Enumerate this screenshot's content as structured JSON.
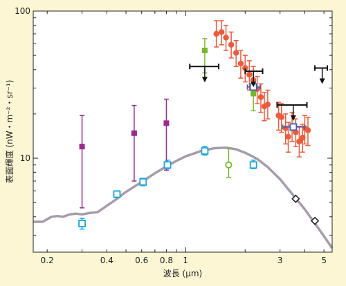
{
  "chart_data": {
    "type": "scatter",
    "xlabel": "波長 (μm)",
    "ylabel": "表面輝度 (nW・m⁻²・sr⁻¹)",
    "x_scale": "log",
    "y_scale": "log",
    "xlim": [
      0.17,
      5.5
    ],
    "ylim": [
      2.3,
      100
    ],
    "x_tick_labels": [
      {
        "value": 0.2,
        "label": "0.2"
      },
      {
        "value": 0.4,
        "label": "0.4"
      },
      {
        "value": 0.6,
        "label": "0.6"
      },
      {
        "value": 0.8,
        "label": "0.8"
      },
      {
        "value": 1,
        "label": "1"
      },
      {
        "value": 3,
        "label": "3"
      },
      {
        "value": 5,
        "label": "5"
      }
    ],
    "y_tick_labels": [
      {
        "value": 10,
        "label": "10"
      },
      {
        "value": 100,
        "label": "100"
      }
    ],
    "colors": {
      "background": "#fdf6d4",
      "plot_bg": "#ffffff",
      "curve": "#a59bab",
      "magenta": "#9a2a8f",
      "cyan": "#1aa3dd",
      "green": "#77b82e",
      "red": "#ee5a3a",
      "blue": "#3b5fb3",
      "black": "#111111"
    },
    "series": [
      {
        "marker": "square",
        "color": "magenta",
        "points": [
          {
            "x": 0.3,
            "y": 12.0,
            "ylo": 4.6,
            "yhi": 19.5
          },
          {
            "x": 0.55,
            "y": 14.8,
            "ylo": 7.0,
            "yhi": 22.8
          },
          {
            "x": 0.8,
            "y": 17.3,
            "ylo": 8.3,
            "yhi": 25.2
          }
        ]
      },
      {
        "marker": "open-square",
        "color": "cyan",
        "points": [
          {
            "x": 0.3,
            "y": 3.6,
            "ylo": 3.3,
            "yhi": 3.9
          },
          {
            "x": 0.45,
            "y": 5.7,
            "ylo": 5.4,
            "yhi": 6.0
          },
          {
            "x": 0.61,
            "y": 6.9,
            "ylo": 6.5,
            "yhi": 7.3
          },
          {
            "x": 0.81,
            "y": 9.0,
            "ylo": 8.5,
            "yhi": 9.7
          },
          {
            "x": 1.25,
            "y": 11.2,
            "ylo": 10.5,
            "yhi": 12.0
          },
          {
            "x": 2.2,
            "y": 9.0,
            "ylo": 8.5,
            "yhi": 9.7
          }
        ]
      },
      {
        "marker": "open-circle",
        "color": "green",
        "points": [
          {
            "x": 1.65,
            "y": 9.0,
            "ylo": 7.4,
            "yhi": 11.6
          }
        ]
      },
      {
        "marker": "filled-square",
        "color": "green",
        "points": [
          {
            "x": 1.25,
            "y": 54,
            "ylo": 38,
            "yhi": 65
          },
          {
            "x": 2.2,
            "y": 27.5,
            "ylo": 21,
            "yhi": 33
          }
        ]
      },
      {
        "marker": "circle",
        "color": "red",
        "points": [
          {
            "x": 1.43,
            "y": 70,
            "ylo": 57,
            "yhi": 86
          },
          {
            "x": 1.52,
            "y": 72,
            "ylo": 59,
            "yhi": 86
          },
          {
            "x": 1.6,
            "y": 66,
            "ylo": 54,
            "yhi": 80
          },
          {
            "x": 1.7,
            "y": 59,
            "ylo": 48,
            "yhi": 72
          },
          {
            "x": 1.8,
            "y": 52,
            "ylo": 42,
            "yhi": 63
          },
          {
            "x": 1.9,
            "y": 44,
            "ylo": 35,
            "yhi": 54
          },
          {
            "x": 2.0,
            "y": 41,
            "ylo": 33,
            "yhi": 50
          },
          {
            "x": 2.1,
            "y": 37,
            "ylo": 29,
            "yhi": 46
          },
          {
            "x": 2.2,
            "y": 34,
            "ylo": 27,
            "yhi": 42
          },
          {
            "x": 2.3,
            "y": 29.5,
            "ylo": 23.5,
            "yhi": 36
          },
          {
            "x": 2.4,
            "y": 26,
            "ylo": 20.5,
            "yhi": 32
          },
          {
            "x": 2.5,
            "y": 22.5,
            "ylo": 18,
            "yhi": 28
          },
          {
            "x": 2.6,
            "y": 23.2,
            "ylo": 18.5,
            "yhi": 29
          },
          {
            "x": 2.95,
            "y": 19.5,
            "ylo": 15.5,
            "yhi": 24
          },
          {
            "x": 3.05,
            "y": 19,
            "ylo": 15,
            "yhi": 23.5
          },
          {
            "x": 3.2,
            "y": 16,
            "ylo": 12.5,
            "yhi": 20
          },
          {
            "x": 3.3,
            "y": 14,
            "ylo": 11,
            "yhi": 17.5
          },
          {
            "x": 3.45,
            "y": 16.5,
            "ylo": 13,
            "yhi": 20.5
          },
          {
            "x": 3.6,
            "y": 15,
            "ylo": 12,
            "yhi": 18.5
          },
          {
            "x": 3.75,
            "y": 13,
            "ylo": 10.2,
            "yhi": 16.5
          },
          {
            "x": 3.9,
            "y": 13.8,
            "ylo": 11,
            "yhi": 17
          },
          {
            "x": 4.0,
            "y": 16,
            "ylo": 12.5,
            "yhi": 19.5
          },
          {
            "x": 4.15,
            "y": 15.5,
            "ylo": 12.2,
            "yhi": 19
          }
        ]
      },
      {
        "marker": "open-square",
        "color": "blue",
        "points": [
          {
            "x": 2.2,
            "y": 30.5,
            "ylo": 29.5,
            "yhi": 31.5,
            "xlo": 2.05,
            "xhi": 2.38
          },
          {
            "x": 3.5,
            "y": 16.3,
            "ylo": 15.8,
            "yhi": 16.9,
            "xlo": 3.1,
            "xhi": 4.0
          }
        ]
      },
      {
        "marker": "upper-limit",
        "color": "black",
        "points": [
          {
            "x": 1.25,
            "y": 42,
            "xlo": 1.05,
            "xhi": 1.47
          },
          {
            "x": 2.2,
            "y": 39,
            "xlo": 2.0,
            "xhi": 2.45
          },
          {
            "x": 3.5,
            "y": 23,
            "xlo": 2.9,
            "xhi": 4.1
          },
          {
            "x": 4.9,
            "y": 41,
            "xlo": 4.5,
            "xhi": 5.2
          }
        ]
      },
      {
        "marker": "open-diamond",
        "color": "black",
        "points": [
          {
            "x": 3.6,
            "y": 5.3
          },
          {
            "x": 4.5,
            "y": 3.75
          }
        ]
      },
      {
        "marker": "line",
        "color": "curve",
        "points": [
          {
            "x": 0.17,
            "y": 3.7
          },
          {
            "x": 0.19,
            "y": 3.7
          },
          {
            "x": 0.2,
            "y": 3.85
          },
          {
            "x": 0.21,
            "y": 4.0
          },
          {
            "x": 0.225,
            "y": 4.05
          },
          {
            "x": 0.24,
            "y": 4.0
          },
          {
            "x": 0.26,
            "y": 4.15
          },
          {
            "x": 0.28,
            "y": 4.2
          },
          {
            "x": 0.3,
            "y": 4.15
          },
          {
            "x": 0.33,
            "y": 4.25
          },
          {
            "x": 0.36,
            "y": 4.3
          },
          {
            "x": 0.4,
            "y": 4.75
          },
          {
            "x": 0.45,
            "y": 5.3
          },
          {
            "x": 0.5,
            "y": 5.9
          },
          {
            "x": 0.55,
            "y": 6.4
          },
          {
            "x": 0.6,
            "y": 6.9
          },
          {
            "x": 0.7,
            "y": 7.9
          },
          {
            "x": 0.8,
            "y": 8.8
          },
          {
            "x": 0.9,
            "y": 9.6
          },
          {
            "x": 1.0,
            "y": 10.3
          },
          {
            "x": 1.2,
            "y": 11.2
          },
          {
            "x": 1.4,
            "y": 11.7
          },
          {
            "x": 1.6,
            "y": 11.8
          },
          {
            "x": 1.8,
            "y": 11.5
          },
          {
            "x": 2.0,
            "y": 10.9
          },
          {
            "x": 2.3,
            "y": 9.9
          },
          {
            "x": 2.6,
            "y": 8.7
          },
          {
            "x": 3.0,
            "y": 7.2
          },
          {
            "x": 3.5,
            "y": 5.6
          },
          {
            "x": 4.0,
            "y": 4.5
          },
          {
            "x": 4.5,
            "y": 3.6
          },
          {
            "x": 5.0,
            "y": 2.95
          },
          {
            "x": 5.5,
            "y": 2.45
          }
        ]
      }
    ]
  }
}
